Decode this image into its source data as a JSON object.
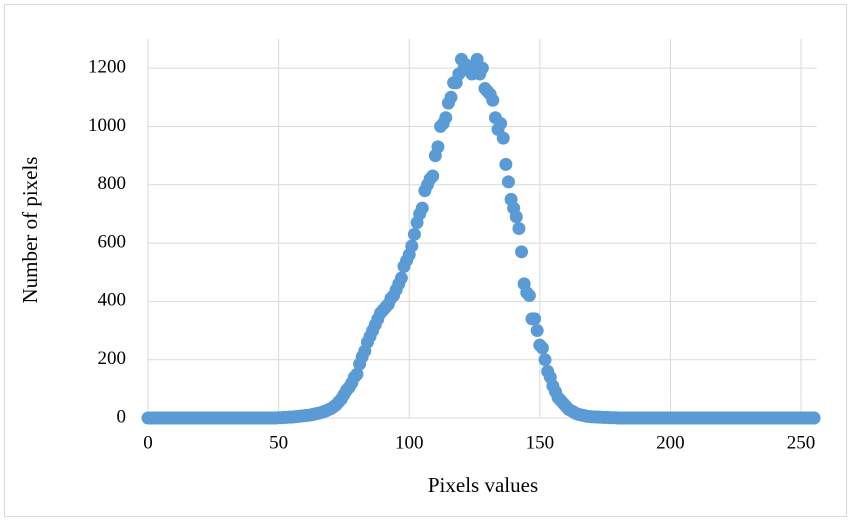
{
  "chart_data": {
    "type": "scatter",
    "x_label": "Pixels values",
    "y_label": "Number of pixels",
    "x": [
      0,
      1,
      2,
      3,
      4,
      5,
      6,
      7,
      8,
      9,
      10,
      11,
      12,
      13,
      14,
      15,
      16,
      17,
      18,
      19,
      20,
      21,
      22,
      23,
      24,
      25,
      26,
      27,
      28,
      29,
      30,
      31,
      32,
      33,
      34,
      35,
      36,
      37,
      38,
      39,
      40,
      41,
      42,
      43,
      44,
      45,
      46,
      47,
      48,
      49,
      50,
      51,
      52,
      53,
      54,
      55,
      56,
      57,
      58,
      59,
      60,
      61,
      62,
      63,
      64,
      65,
      66,
      67,
      68,
      69,
      70,
      71,
      72,
      73,
      74,
      75,
      76,
      77,
      78,
      79,
      80,
      81,
      82,
      83,
      84,
      85,
      86,
      87,
      88,
      89,
      90,
      91,
      92,
      93,
      94,
      95,
      96,
      97,
      98,
      99,
      100,
      101,
      102,
      103,
      104,
      105,
      106,
      107,
      108,
      109,
      110,
      111,
      112,
      113,
      114,
      115,
      116,
      117,
      118,
      119,
      120,
      121,
      122,
      123,
      124,
      125,
      126,
      127,
      128,
      129,
      130,
      131,
      132,
      133,
      134,
      135,
      136,
      137,
      138,
      139,
      140,
      141,
      142,
      143,
      144,
      145,
      146,
      147,
      148,
      149,
      150,
      151,
      152,
      153,
      154,
      155,
      156,
      157,
      158,
      159,
      160,
      161,
      162,
      163,
      164,
      165,
      166,
      167,
      168,
      169,
      170,
      171,
      172,
      173,
      174,
      175,
      176,
      177,
      178,
      179,
      180,
      181,
      182,
      183,
      184,
      185,
      186,
      187,
      188,
      189,
      190,
      191,
      192,
      193,
      194,
      195,
      196,
      197,
      198,
      199,
      200,
      201,
      202,
      203,
      204,
      205,
      206,
      207,
      208,
      209,
      210,
      211,
      212,
      213,
      214,
      215,
      216,
      217,
      218,
      219,
      220,
      221,
      222,
      223,
      224,
      225,
      226,
      227,
      228,
      229,
      230,
      231,
      232,
      233,
      234,
      235,
      236,
      237,
      238,
      239,
      240,
      241,
      242,
      243,
      244,
      245,
      246,
      247,
      248,
      249,
      250,
      251,
      252,
      253,
      254,
      255
    ],
    "series": [
      {
        "name": "Number of pixels",
        "color": "#5b9bd5",
        "values": [
          0,
          0,
          0,
          0,
          0,
          0,
          0,
          0,
          0,
          0,
          0,
          0,
          0,
          0,
          0,
          0,
          0,
          0,
          0,
          0,
          0,
          0,
          0,
          0,
          0,
          0,
          0,
          0,
          0,
          0,
          0,
          0,
          0,
          0,
          0,
          0,
          0,
          0,
          0,
          0,
          0,
          0,
          0,
          0,
          0,
          0,
          0,
          0,
          0,
          0,
          1,
          1,
          2,
          2,
          3,
          3,
          4,
          5,
          6,
          7,
          8,
          9,
          10,
          12,
          14,
          16,
          18,
          21,
          24,
          28,
          32,
          38,
          45,
          55,
          65,
          80,
          95,
          105,
          120,
          140,
          150,
          185,
          210,
          230,
          260,
          280,
          300,
          320,
          340,
          360,
          370,
          380,
          390,
          410,
          420,
          440,
          460,
          480,
          520,
          540,
          560,
          590,
          630,
          670,
          700,
          720,
          780,
          800,
          820,
          830,
          900,
          930,
          1000,
          1010,
          1030,
          1080,
          1100,
          1150,
          1150,
          1180,
          1230,
          1200,
          1210,
          1190,
          1180,
          1200,
          1230,
          1180,
          1200,
          1130,
          1120,
          1110,
          1090,
          1030,
          990,
          1010,
          960,
          870,
          810,
          750,
          720,
          690,
          650,
          570,
          460,
          430,
          420,
          340,
          340,
          300,
          250,
          240,
          200,
          160,
          140,
          110,
          90,
          70,
          60,
          50,
          40,
          30,
          25,
          20,
          15,
          12,
          10,
          8,
          6,
          5,
          4,
          4,
          3,
          3,
          2,
          2,
          2,
          1,
          1,
          1,
          0,
          0,
          0,
          0,
          0,
          0,
          0,
          0,
          0,
          0,
          0,
          0,
          0,
          0,
          0,
          0,
          0,
          0,
          0,
          0,
          0,
          0,
          0,
          0,
          0,
          0,
          0,
          0,
          0,
          0,
          0,
          0,
          0,
          0,
          0,
          0,
          0,
          0,
          0,
          0,
          0,
          0,
          0,
          0,
          0,
          0,
          0,
          0,
          0,
          0,
          0,
          0,
          0,
          0,
          0,
          0,
          0,
          0,
          0,
          0,
          0,
          0,
          0,
          0,
          0,
          0,
          0,
          0,
          0,
          0,
          0,
          0,
          0,
          0,
          0,
          0
        ]
      }
    ],
    "xlim": [
      0,
      256
    ],
    "xticks": [
      0,
      50,
      100,
      150,
      200,
      250
    ],
    "ylim": [
      0,
      1300
    ],
    "yticks": [
      0,
      200,
      400,
      600,
      800,
      1000,
      1200
    ],
    "grid": true
  }
}
